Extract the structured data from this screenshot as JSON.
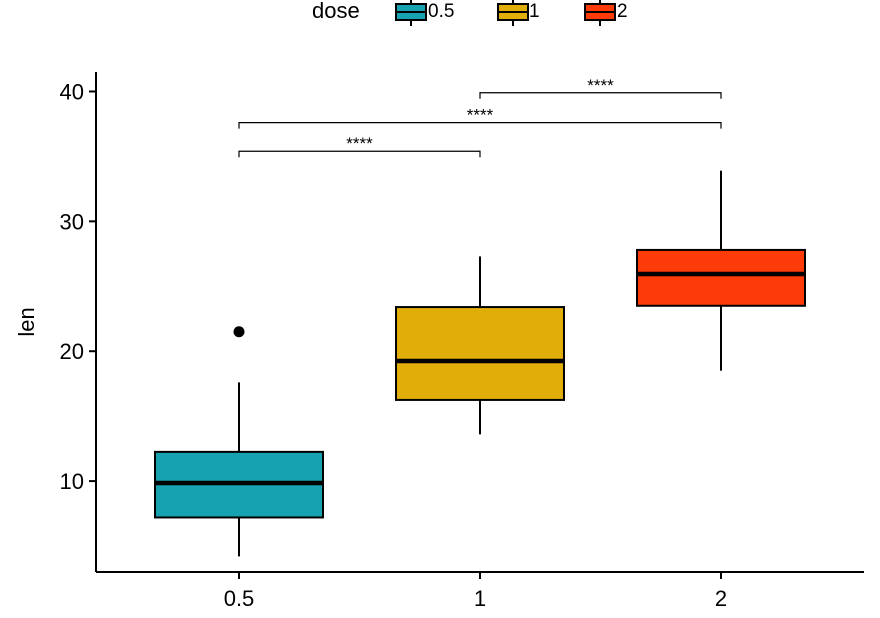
{
  "chart_data": {
    "type": "boxplot",
    "ylabel": "len",
    "xlabel": "",
    "categories": [
      "0.5",
      "1",
      "2"
    ],
    "yticks": [
      10,
      20,
      30,
      40
    ],
    "ylim": [
      3.0,
      41.5
    ],
    "legend": {
      "title": "dose",
      "position": "top",
      "entries": [
        "0.5",
        "1",
        "2"
      ]
    },
    "colors": [
      "#16A2B0",
      "#E1AE09",
      "#FC3B08"
    ],
    "boxes": [
      {
        "category": "0.5",
        "min": 4.2,
        "q1": 7.2,
        "median": 9.85,
        "q3": 12.25,
        "max": 17.6,
        "outliers": [
          21.5
        ]
      },
      {
        "category": "1",
        "min": 13.6,
        "q1": 16.25,
        "median": 19.25,
        "q3": 23.4,
        "max": 27.3,
        "outliers": []
      },
      {
        "category": "2",
        "min": 18.5,
        "q1": 23.5,
        "median": 25.95,
        "q3": 27.8,
        "max": 33.9,
        "outliers": []
      }
    ],
    "comparisons": [
      {
        "from": "0.5",
        "to": "1",
        "y": 35.4,
        "label": "****"
      },
      {
        "from": "0.5",
        "to": "2",
        "y": 37.6,
        "label": "****"
      },
      {
        "from": "1",
        "to": "2",
        "y": 39.9,
        "label": "****"
      }
    ]
  }
}
